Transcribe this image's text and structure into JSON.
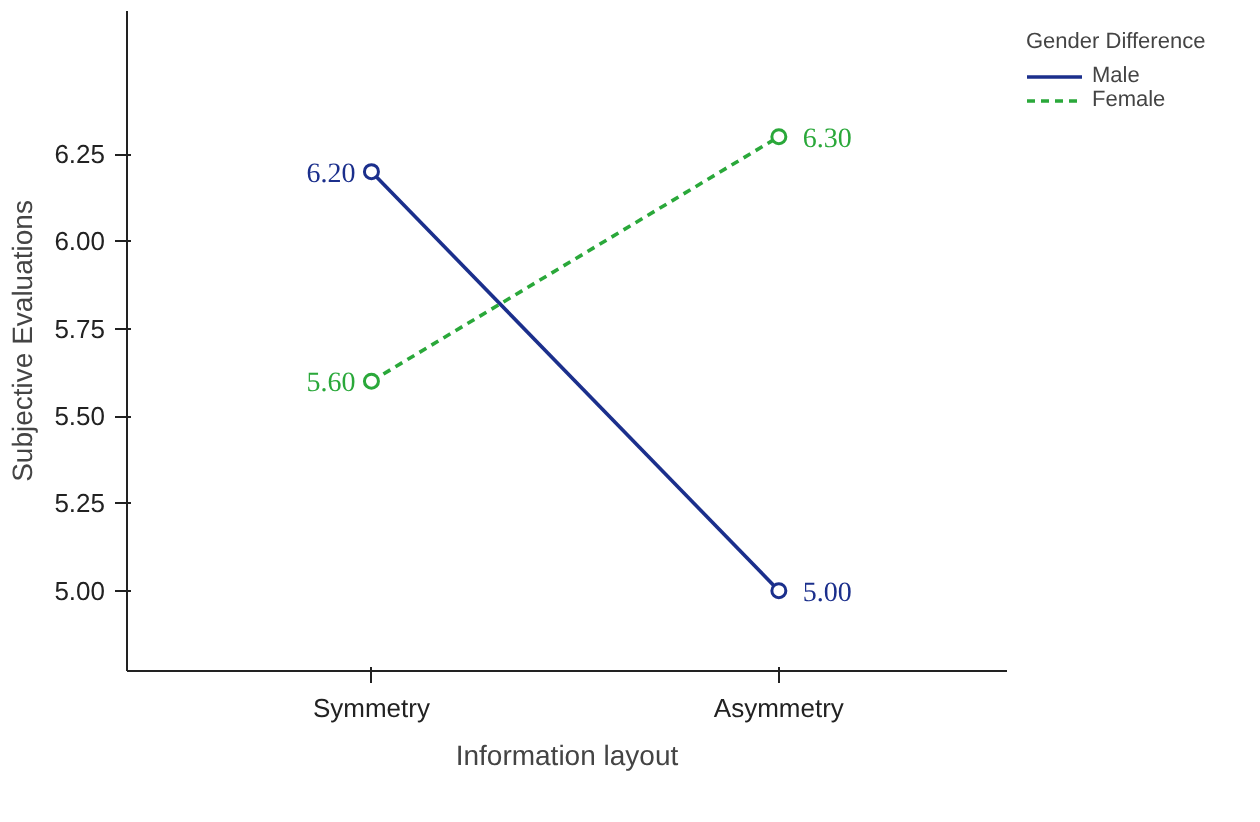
{
  "chart_data": {
    "type": "line",
    "xlabel": "Information layout",
    "ylabel": "Subjective Evaluations",
    "legend_title": "Gender Difference",
    "categories": [
      "Symmetry",
      "Asymmetry"
    ],
    "series": [
      {
        "name": "Male",
        "color": "#1b2f8c",
        "values": [
          6.2,
          5.0
        ],
        "value_labels": [
          "6.20",
          "5.00"
        ],
        "line_style": "solid"
      },
      {
        "name": "Female",
        "color": "#2aa83a",
        "values": [
          5.6,
          6.3
        ],
        "value_labels": [
          "5.60",
          "6.30"
        ],
        "line_style": "dashed"
      }
    ],
    "ylim": [
      4.77,
      6.66
    ],
    "yticks": [
      {
        "value": 5,
        "label": "5.00"
      },
      {
        "value": 5.25,
        "label": "5.25"
      },
      {
        "value": 5.5,
        "label": "5.50"
      },
      {
        "value": 5.75,
        "label": "5.75"
      },
      {
        "value": 6,
        "label": "6.00"
      },
      {
        "value": 6.25,
        "label": "6.25"
      }
    ],
    "grid": false,
    "legend": "top right",
    "marker": "circle"
  }
}
